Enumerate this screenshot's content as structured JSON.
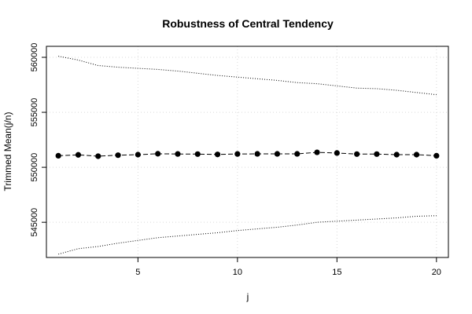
{
  "chart_data": {
    "type": "line",
    "title": "Robustness of Central Tendency",
    "xlabel": "j",
    "ylabel": "Trimmed Mean(j/n)",
    "xlim": [
      0.4,
      20.6
    ],
    "ylim": [
      541800,
      561000
    ],
    "x_ticks": [
      5,
      10,
      15,
      20
    ],
    "y_ticks": [
      545000,
      550000,
      555000,
      560000
    ],
    "grid": true,
    "x": [
      1,
      2,
      3,
      4,
      5,
      6,
      7,
      8,
      9,
      10,
      11,
      12,
      13,
      14,
      15,
      16,
      17,
      18,
      19,
      20
    ],
    "series": [
      {
        "role": "trimmed_mean",
        "style": "dashed-with-points",
        "color": "#000000",
        "values": [
          551050,
          551130,
          551010,
          551100,
          551150,
          551230,
          551210,
          551200,
          551170,
          551210,
          551220,
          551220,
          551220,
          551360,
          551300,
          551200,
          551200,
          551150,
          551150,
          551050
        ]
      },
      {
        "role": "upper_bound",
        "style": "dotted",
        "color": "#000000",
        "values": [
          560100,
          559750,
          559250,
          559100,
          559000,
          558900,
          558750,
          558550,
          558350,
          558200,
          558050,
          557900,
          557700,
          557600,
          557400,
          557200,
          557150,
          557000,
          556800,
          556600
        ]
      },
      {
        "role": "lower_bound",
        "style": "dotted",
        "color": "#000000",
        "values": [
          542100,
          542600,
          542800,
          543100,
          543350,
          543600,
          543750,
          543900,
          544050,
          544250,
          544400,
          544550,
          544750,
          545000,
          545100,
          545200,
          545300,
          545400,
          545550,
          545600
        ]
      }
    ]
  }
}
